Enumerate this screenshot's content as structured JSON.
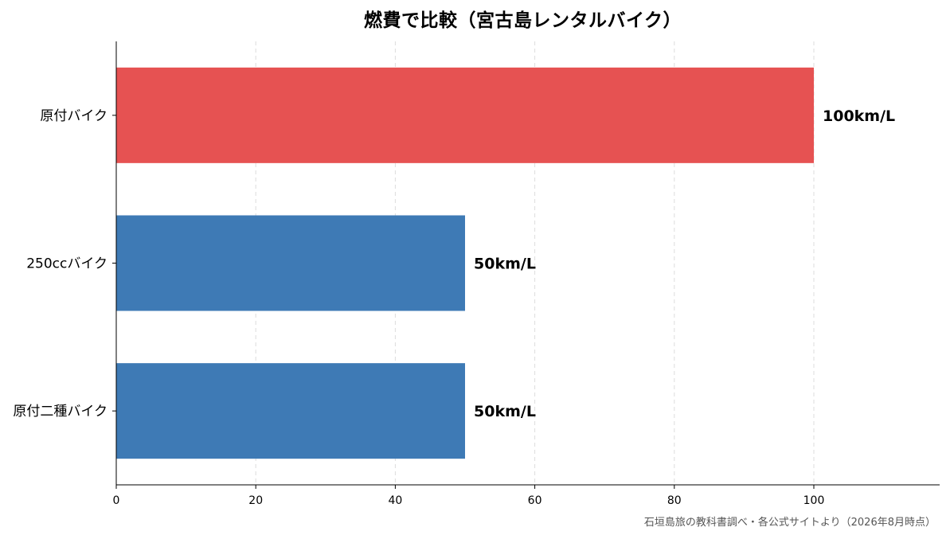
{
  "chart_data": {
    "type": "bar",
    "orientation": "horizontal",
    "title": "燃費で比較（宮古島レンタルバイク）",
    "categories": [
      "原付バイク",
      "250ccバイク",
      "原付二種バイク"
    ],
    "values": [
      100,
      50,
      50
    ],
    "value_labels": [
      "100km/L",
      "50km/L",
      "50km/L"
    ],
    "colors": [
      "#e65252",
      "#3e7ab5",
      "#3e7ab5"
    ],
    "xlim": [
      0,
      118
    ],
    "xticks": [
      0,
      20,
      40,
      60,
      80,
      100
    ],
    "xlabel": "",
    "ylabel": "",
    "grid": "vertical dashed",
    "legend": "none"
  },
  "source_note": "石垣島旅の教科書調べ・各公式サイトより（2026年8月時点）"
}
